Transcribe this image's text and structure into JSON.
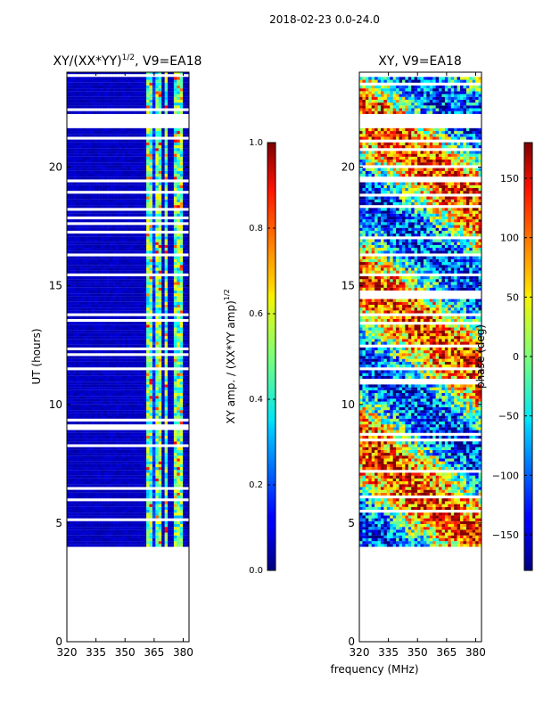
{
  "figure": {
    "suptitle": "2018-02-23 0.0-24.0",
    "shared_xlabel": "frequency (MHz)"
  },
  "chart_data": [
    {
      "type": "heatmap",
      "title_main": "XY/(XX*YY)",
      "title_exp": "1/2",
      "title_suffix": ", V9=EA18",
      "xlabel": "",
      "ylabel": "UT (hours)",
      "xlim": [
        320,
        383
      ],
      "ylim": [
        0,
        24
      ],
      "xticks": [
        320,
        335,
        350,
        365,
        380
      ],
      "yticks": [
        0,
        5,
        10,
        15,
        20
      ],
      "colorbar": {
        "label_main": "XY amp. / (XX*YY amp)",
        "label_exp": "1/2",
        "range": [
          0.0,
          1.0
        ],
        "ticks": [
          "0.0",
          "0.2",
          "0.4",
          "0.6",
          "0.8",
          "1.0"
        ]
      },
      "data_time_range": [
        4.0,
        24.0
      ],
      "data_gaps_hours": [
        [
          21.6,
          22.2
        ],
        [
          19.3,
          19.4
        ],
        [
          16.2,
          16.3
        ]
      ],
      "bright_band_MHz": [
        [
          361,
          364
        ],
        [
          366,
          369
        ],
        [
          370,
          372
        ],
        [
          375,
          376
        ],
        [
          377,
          380
        ]
      ]
    },
    {
      "type": "heatmap",
      "title": "XY, V9=EA18",
      "xlabel": "",
      "ylabel": "",
      "xlim": [
        320,
        383
      ],
      "ylim": [
        0,
        24
      ],
      "xticks": [
        320,
        335,
        350,
        365,
        380
      ],
      "yticks": [
        0,
        5,
        10,
        15,
        20
      ],
      "colorbar": {
        "label": "phase (deg)",
        "range": [
          -180,
          180
        ],
        "ticks": [
          "150",
          "100",
          "50",
          "0",
          "−50",
          "−100",
          "−150"
        ],
        "tick_values": [
          150,
          100,
          50,
          0,
          -50,
          -100,
          -150
        ]
      },
      "data_time_range": [
        4.0,
        24.0
      ]
    }
  ]
}
